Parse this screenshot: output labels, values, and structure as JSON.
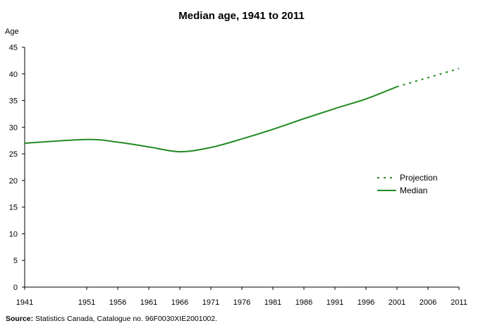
{
  "chart_data": {
    "type": "line",
    "title": "Median age, 1941 to 2011",
    "ylabel": "Age",
    "xlabel": "",
    "ylim": [
      0,
      45
    ],
    "yticks": [
      0,
      5,
      10,
      15,
      20,
      25,
      30,
      35,
      40,
      45
    ],
    "xlim": [
      1941,
      2011
    ],
    "xticks": [
      1941,
      1951,
      1956,
      1961,
      1966,
      1971,
      1976,
      1981,
      1986,
      1991,
      1996,
      2001,
      2006,
      2011
    ],
    "grid": false,
    "legend_position": "right",
    "series": [
      {
        "name": "Median",
        "style": "solid",
        "color": "#228B22",
        "x": [
          1941,
          1951,
          1956,
          1961,
          1966,
          1971,
          1976,
          1981,
          1986,
          1991,
          1996,
          2001
        ],
        "y": [
          27.0,
          27.7,
          27.2,
          26.3,
          25.4,
          26.2,
          27.8,
          29.6,
          31.6,
          33.5,
          35.3,
          37.6
        ]
      },
      {
        "name": "Projection",
        "style": "dotted",
        "color": "#228B22",
        "x": [
          2001,
          2006,
          2011
        ],
        "y": [
          37.6,
          39.3,
          41.0
        ]
      }
    ]
  },
  "source": {
    "label": "Source:",
    "text": " Statistics Canada, Catalogue no. 96F0030XIE2001002."
  }
}
